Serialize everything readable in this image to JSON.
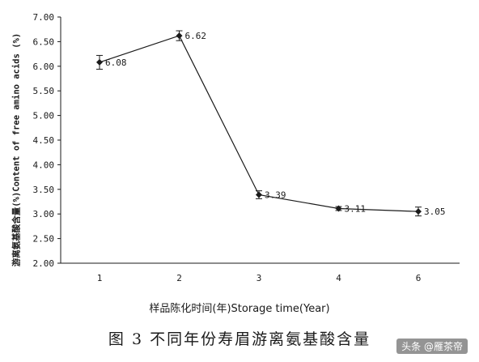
{
  "chart_data": {
    "type": "line",
    "categories": [
      "1",
      "2",
      "3",
      "4",
      "6"
    ],
    "values": [
      6.08,
      6.62,
      3.39,
      3.11,
      3.05
    ],
    "errors": [
      0.14,
      0.1,
      0.08,
      0.04,
      0.09
    ],
    "data_labels": [
      "6.08",
      "6.62",
      "3.39",
      "3.11",
      "3.05"
    ],
    "ylim": [
      2.0,
      7.0
    ],
    "yticks": [
      "2.00",
      "2.50",
      "3.00",
      "3.50",
      "4.00",
      "4.50",
      "5.00",
      "5.50",
      "6.00",
      "6.50",
      "7.00"
    ],
    "ytick_values": [
      2.0,
      2.5,
      3.0,
      3.5,
      4.0,
      4.5,
      5.0,
      5.5,
      6.0,
      6.5,
      7.0
    ],
    "ylabel": "游离氨基酸含量(%)Content of free amino acids (%)",
    "xlabel": "样品陈化时间(年)Storage time(Year)",
    "grid": false,
    "marker": "diamond",
    "line_color": "#1a1a1a"
  },
  "caption": "图 3   不同年份寿眉游离氨基酸含量",
  "watermark": "头条 @雁茶帝"
}
